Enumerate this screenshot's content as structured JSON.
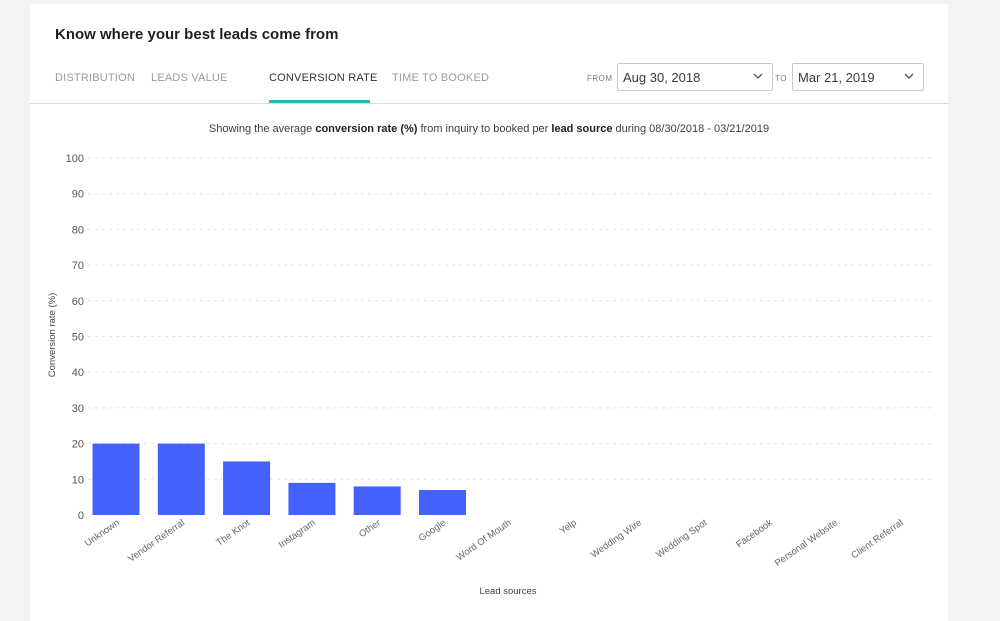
{
  "header": {
    "title": "Know where your best leads come from"
  },
  "tabs": [
    {
      "label": "DISTRIBUTION",
      "active": false
    },
    {
      "label": "LEADS VALUE",
      "active": false
    },
    {
      "label": "CONVERSION RATE",
      "active": true
    },
    {
      "label": "TIME TO BOOKED",
      "active": false
    }
  ],
  "range": {
    "from_label": "FROM",
    "from_value": "Aug 30, 2018",
    "to_label": "TO",
    "to_value": "Mar 21, 2019"
  },
  "subtitle": {
    "part1": "Showing the average ",
    "bold1": "conversion rate (%)",
    "part2": " from inquiry to booked per ",
    "bold2": "lead source",
    "part3": " during 08/30/2018 - 03/21/2019"
  },
  "colors": {
    "bar": "#4561fb",
    "accent": "#29b5b5"
  },
  "chart_data": {
    "type": "bar",
    "categories": [
      "Unknown",
      "Vendor Referral",
      "The Knot",
      "Instagram",
      "Other",
      "Google",
      "Word Of Mouth",
      "Yelp",
      "Wedding Wire",
      "Wedding Spot",
      "Facebook",
      "Personal Website",
      "Client Referral"
    ],
    "values": [
      20,
      20,
      15,
      9,
      8,
      7,
      0,
      0,
      0,
      0,
      0,
      0,
      0
    ],
    "xlabel": "Lead sources",
    "ylabel": "Conversion rate (%)",
    "ylim": [
      0,
      100
    ],
    "yticks": [
      0,
      10,
      20,
      30,
      40,
      50,
      60,
      70,
      80,
      90,
      100
    ],
    "grid": true
  }
}
